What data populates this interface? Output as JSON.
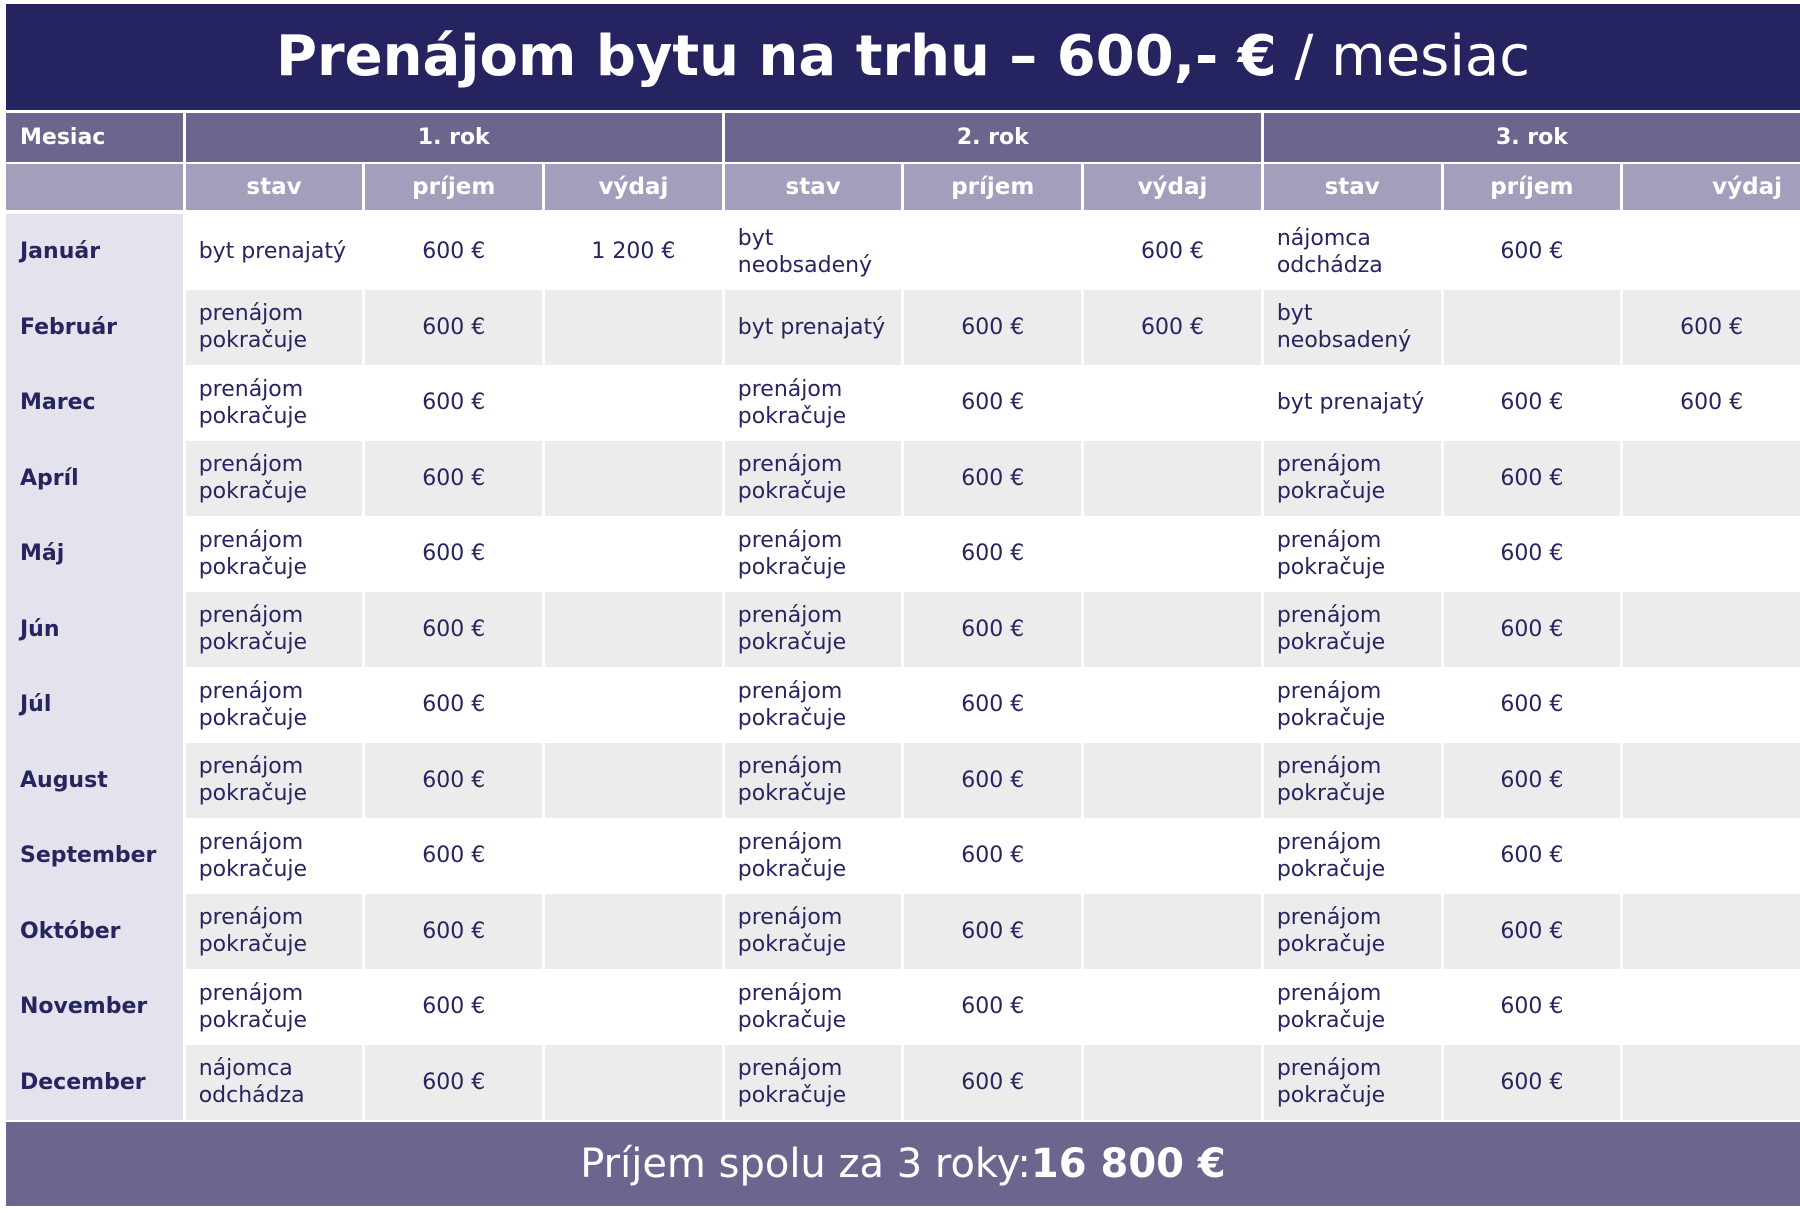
{
  "title": {
    "bold": "Prenájom bytu na trhu – 600,- €",
    "light": " / mesiac"
  },
  "header": {
    "month_label": "Mesiac",
    "years": [
      "1. rok",
      "2. rok",
      "3. rok"
    ],
    "sub": {
      "state": "stav",
      "income": "príjem",
      "expense": "výdaj"
    }
  },
  "rows": [
    {
      "month": "Január",
      "y1": {
        "state": "byt prenajatý",
        "income": "600 €",
        "expense": "1 200 €"
      },
      "y2": {
        "state": "byt neobsadený",
        "income": "",
        "expense": "600 €"
      },
      "y3": {
        "state": "nájomca odchádza",
        "income": "600 €",
        "expense": ""
      }
    },
    {
      "month": "Február",
      "y1": {
        "state": "prenájom pokračuje",
        "income": "600 €",
        "expense": ""
      },
      "y2": {
        "state": "byt prenajatý",
        "income": "600 €",
        "expense": "600 €"
      },
      "y3": {
        "state": "byt neobsadený",
        "income": "",
        "expense": "600 €"
      }
    },
    {
      "month": "Marec",
      "y1": {
        "state": "prenájom pokračuje",
        "income": "600 €",
        "expense": ""
      },
      "y2": {
        "state": "prenájom pokračuje",
        "income": "600 €",
        "expense": ""
      },
      "y3": {
        "state": "byt prenajatý",
        "income": "600 €",
        "expense": "600 €"
      }
    },
    {
      "month": "Apríl",
      "y1": {
        "state": "prenájom pokračuje",
        "income": "600 €",
        "expense": ""
      },
      "y2": {
        "state": "prenájom pokračuje",
        "income": "600 €",
        "expense": ""
      },
      "y3": {
        "state": "prenájom pokračuje",
        "income": "600 €",
        "expense": ""
      }
    },
    {
      "month": "Máj",
      "y1": {
        "state": "prenájom pokračuje",
        "income": "600 €",
        "expense": ""
      },
      "y2": {
        "state": "prenájom pokračuje",
        "income": "600 €",
        "expense": ""
      },
      "y3": {
        "state": "prenájom pokračuje",
        "income": "600 €",
        "expense": ""
      }
    },
    {
      "month": "Jún",
      "y1": {
        "state": "prenájom pokračuje",
        "income": "600 €",
        "expense": ""
      },
      "y2": {
        "state": "prenájom pokračuje",
        "income": "600 €",
        "expense": ""
      },
      "y3": {
        "state": "prenájom pokračuje",
        "income": "600 €",
        "expense": ""
      }
    },
    {
      "month": "Júl",
      "y1": {
        "state": "prenájom pokračuje",
        "income": "600 €",
        "expense": ""
      },
      "y2": {
        "state": "prenájom pokračuje",
        "income": "600 €",
        "expense": ""
      },
      "y3": {
        "state": "prenájom pokračuje",
        "income": "600 €",
        "expense": ""
      }
    },
    {
      "month": "August",
      "y1": {
        "state": "prenájom pokračuje",
        "income": "600 €",
        "expense": ""
      },
      "y2": {
        "state": "prenájom pokračuje",
        "income": "600 €",
        "expense": ""
      },
      "y3": {
        "state": "prenájom pokračuje",
        "income": "600 €",
        "expense": ""
      }
    },
    {
      "month": "September",
      "y1": {
        "state": "prenájom pokračuje",
        "income": "600 €",
        "expense": ""
      },
      "y2": {
        "state": "prenájom pokračuje",
        "income": "600 €",
        "expense": ""
      },
      "y3": {
        "state": "prenájom pokračuje",
        "income": "600 €",
        "expense": ""
      }
    },
    {
      "month": "Október",
      "y1": {
        "state": "prenájom pokračuje",
        "income": "600 €",
        "expense": ""
      },
      "y2": {
        "state": "prenájom pokračuje",
        "income": "600 €",
        "expense": ""
      },
      "y3": {
        "state": "prenájom pokračuje",
        "income": "600 €",
        "expense": ""
      }
    },
    {
      "month": "November",
      "y1": {
        "state": "prenájom pokračuje",
        "income": "600 €",
        "expense": ""
      },
      "y2": {
        "state": "prenájom pokračuje",
        "income": "600 €",
        "expense": ""
      },
      "y3": {
        "state": "prenájom pokračuje",
        "income": "600 €",
        "expense": ""
      }
    },
    {
      "month": "December",
      "y1": {
        "state": "nájomca odchádza",
        "income": "600 €",
        "expense": ""
      },
      "y2": {
        "state": "prenájom pokračuje",
        "income": "600 €",
        "expense": ""
      },
      "y3": {
        "state": "prenájom pokračuje",
        "income": "600 €",
        "expense": ""
      }
    }
  ],
  "footer": {
    "label": "Príjem spolu za 3 roky: ",
    "total": "16 800 €"
  }
}
